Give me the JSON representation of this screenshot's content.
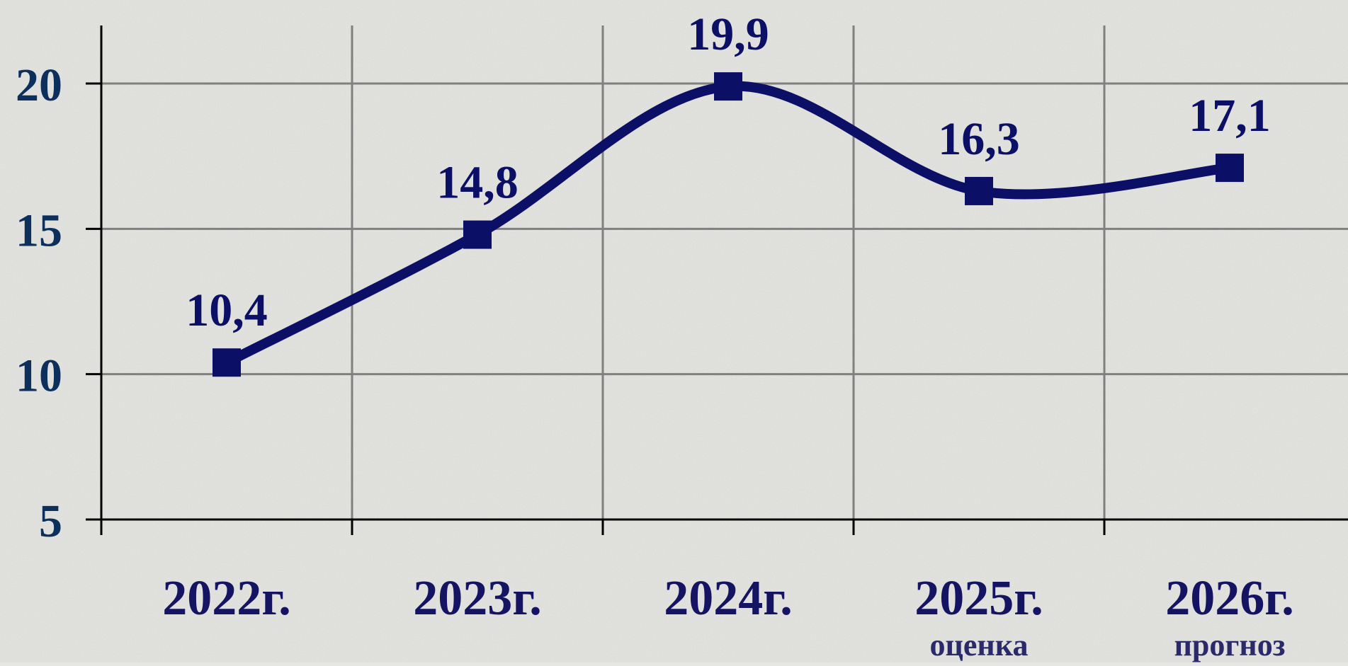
{
  "chart_data": {
    "type": "line",
    "categories": [
      "2022г.",
      "2023г.",
      "2024г.",
      "2025г.",
      "2026г."
    ],
    "sublabels": [
      "",
      "",
      "",
      "оценка",
      "прогноз"
    ],
    "values": [
      10.4,
      14.8,
      19.9,
      16.3,
      17.1
    ],
    "value_labels": [
      "10,4",
      "14,8",
      "19,9",
      "16,3",
      "17,1"
    ],
    "ylim": [
      5,
      20
    ],
    "yticks": [
      5,
      10,
      15,
      20
    ],
    "grid": true,
    "smooth": true,
    "colors": {
      "series": "#0c0f66",
      "value_label": "#0c0f66",
      "axis_label": "#0c2f5c",
      "category_label": "#141463",
      "grid": "#808080",
      "axis": "#000000",
      "background": "#e6e6e3"
    }
  }
}
